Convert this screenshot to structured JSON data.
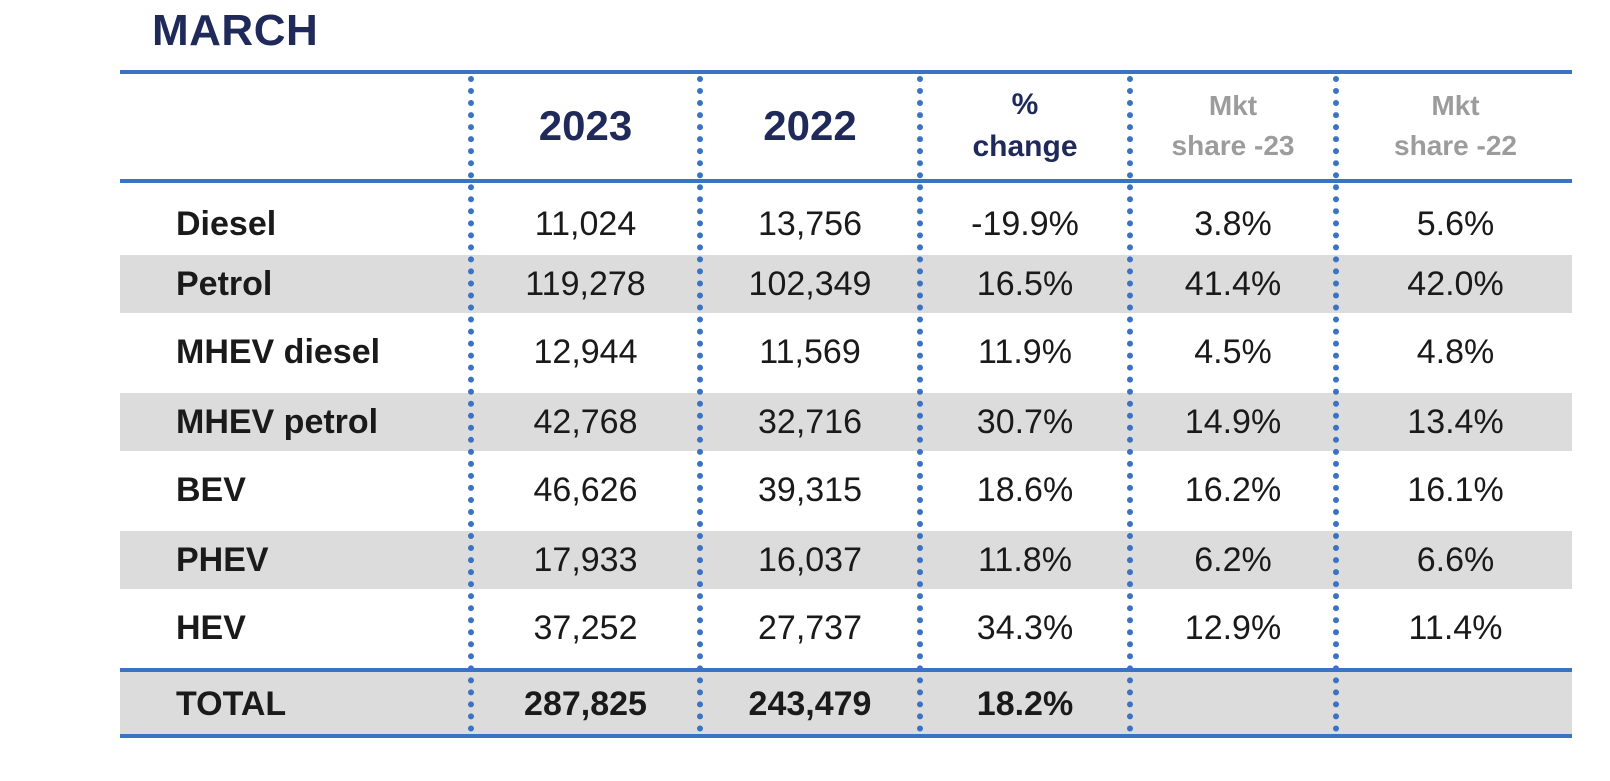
{
  "title": "MARCH",
  "columns": {
    "y2023": "2023",
    "y2022": "2022",
    "pct_line1": "%",
    "pct_line2": "change",
    "mkt23_line1": "Mkt",
    "mkt23_line2": "share -23",
    "mkt22_line1": "Mkt",
    "mkt22_line2": "share -22"
  },
  "rows": [
    {
      "label": "Diesel",
      "y2023": "11,024",
      "y2022": "13,756",
      "change": "-19.9%",
      "share23": "3.8%",
      "share22": "5.6%"
    },
    {
      "label": "Petrol",
      "y2023": "119,278",
      "y2022": "102,349",
      "change": "16.5%",
      "share23": "41.4%",
      "share22": "42.0%"
    },
    {
      "label": "MHEV diesel",
      "y2023": "12,944",
      "y2022": "11,569",
      "change": "11.9%",
      "share23": "4.5%",
      "share22": "4.8%"
    },
    {
      "label": "MHEV petrol",
      "y2023": "42,768",
      "y2022": "32,716",
      "change": "30.7%",
      "share23": "14.9%",
      "share22": "13.4%"
    },
    {
      "label": "BEV",
      "y2023": "46,626",
      "y2022": "39,315",
      "change": "18.6%",
      "share23": "16.2%",
      "share22": "16.1%"
    },
    {
      "label": "PHEV",
      "y2023": "17,933",
      "y2022": "16,037",
      "change": "11.8%",
      "share23": "6.2%",
      "share22": "6.6%"
    },
    {
      "label": "HEV",
      "y2023": "37,252",
      "y2022": "27,737",
      "change": "34.3%",
      "share23": "12.9%",
      "share22": "11.4%"
    }
  ],
  "total": {
    "label": "TOTAL",
    "y2023": "287,825",
    "y2022": "243,479",
    "change": "18.2%",
    "share23": "",
    "share22": ""
  }
}
